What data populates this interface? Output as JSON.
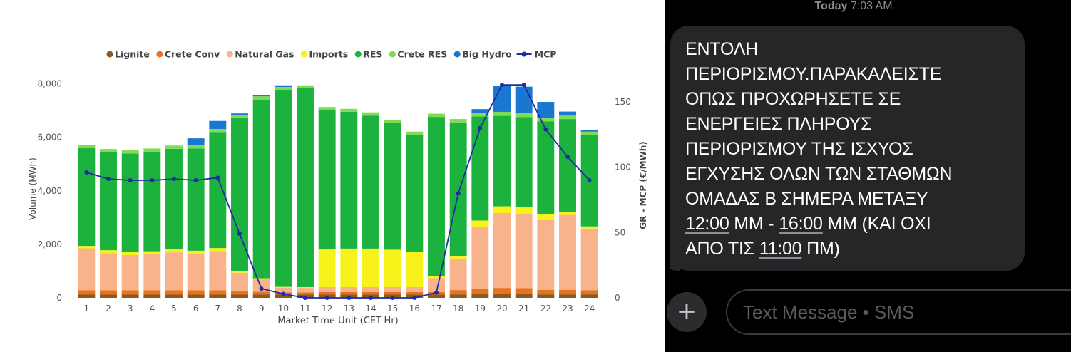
{
  "chart_data": {
    "type": "bar",
    "stacked": true,
    "xlabel": "Market Time Unit (CET-Hr)",
    "ylabel": "Volume (MWh)",
    "y2label": "GR - MCP (€/MWh)",
    "ylim": [
      0,
      8200
    ],
    "y2lim": [
      0,
      168
    ],
    "yticks": [
      "0",
      "2,000",
      "4,000",
      "6,000",
      "8,000"
    ],
    "yticks_values": [
      0,
      2000,
      4000,
      6000,
      8000
    ],
    "y2ticks": [
      "0",
      "50",
      "100",
      "150"
    ],
    "y2ticks_values": [
      0,
      50,
      100,
      150
    ],
    "legend_position": "top",
    "categories": [
      "1",
      "2",
      "3",
      "4",
      "5",
      "6",
      "7",
      "8",
      "9",
      "10",
      "11",
      "12",
      "13",
      "14",
      "15",
      "16",
      "17",
      "18",
      "19",
      "20",
      "21",
      "22",
      "23",
      "24"
    ],
    "series": [
      {
        "name": "Lignite",
        "color": "#8b5a1e",
        "values": [
          120,
          120,
          120,
          120,
          120,
          120,
          120,
          120,
          120,
          120,
          120,
          120,
          120,
          120,
          120,
          120,
          120,
          130,
          140,
          150,
          150,
          130,
          130,
          130
        ]
      },
      {
        "name": "Crete Conv",
        "color": "#e8731e",
        "values": [
          160,
          160,
          160,
          160,
          160,
          160,
          160,
          150,
          110,
          80,
          80,
          100,
          100,
          100,
          100,
          100,
          100,
          160,
          190,
          220,
          210,
          170,
          170,
          150
        ]
      },
      {
        "name": "Natural Gas",
        "color": "#f8b38a",
        "values": [
          1570,
          1390,
          1320,
          1350,
          1420,
          1370,
          1470,
          670,
          460,
          180,
          170,
          180,
          180,
          180,
          180,
          180,
          520,
          1180,
          2330,
          2800,
          2790,
          2610,
          2800,
          2310
        ]
      },
      {
        "name": "Imports",
        "color": "#f7f21a",
        "values": [
          90,
          110,
          110,
          110,
          110,
          110,
          110,
          60,
          40,
          30,
          30,
          1410,
          1440,
          1440,
          1400,
          1320,
          80,
          100,
          230,
          250,
          250,
          230,
          100,
          80
        ]
      },
      {
        "name": "RES",
        "color": "#1bb23d",
        "values": [
          3650,
          3660,
          3680,
          3720,
          3760,
          3820,
          4330,
          5710,
          6680,
          7360,
          7430,
          5210,
          5110,
          4970,
          4730,
          4370,
          5940,
          4980,
          3890,
          3380,
          3350,
          3450,
          3480,
          3420
        ]
      },
      {
        "name": "Crete RES",
        "color": "#7fdb52",
        "values": [
          120,
          120,
          120,
          120,
          120,
          120,
          120,
          120,
          120,
          110,
          110,
          110,
          110,
          120,
          120,
          120,
          120,
          130,
          140,
          150,
          150,
          140,
          130,
          120
        ]
      },
      {
        "name": "Big Hydro",
        "color": "#1877d0",
        "values": [
          0,
          0,
          0,
          0,
          0,
          260,
          300,
          60,
          50,
          60,
          0,
          0,
          0,
          0,
          0,
          0,
          0,
          0,
          130,
          980,
          990,
          590,
          150,
          50
        ]
      }
    ],
    "line_series": {
      "name": "MCP",
      "color": "#1f2aa5",
      "axis": "y2",
      "values": [
        96,
        91,
        90,
        90,
        91,
        90,
        92,
        49,
        7,
        3,
        0,
        0,
        0,
        0,
        0,
        0,
        4,
        80,
        130,
        163,
        163,
        129,
        108,
        90
      ]
    }
  },
  "sms": {
    "timestamp_day": "Today",
    "timestamp_time": "7:03 AM",
    "lines": [
      [
        "ΕΝΤΟΛΗ"
      ],
      [
        "ΠΕΡΙΟΡΙΣΜΟΥ.ΠΑΡΑΚΑΛΕΙΣΤΕ"
      ],
      [
        "ΟΠΩΣ ΠΡΟΧΩΡΗΣΕΤΕ ΣΕ"
      ],
      [
        "ΕΝΕΡΓΕΙΕΣ ΠΛΗΡΟΥΣ"
      ],
      [
        "ΠΕΡΙΟΡΙΣΜΟΥ ΤΗΣ ΙΣΧΥΟΣ"
      ],
      [
        "ΕΓΧΥΣΗΣ ΟΛΩΝ ΤΩΝ ΣΤΑΘΜΩΝ"
      ],
      [
        "ΟΜΑΔΑΣ Β ΣΗΜΕΡΑ ΜΕΤΑΞΥ"
      ],
      [
        "",
        "12:00",
        " ΜΜ - ",
        "16:00",
        " ΜΜ (ΚΑΙ ΟΧΙ"
      ],
      [
        "ΑΠΟ ΤΙΣ ",
        "11:00",
        " ΠΜ)"
      ]
    ],
    "input_placeholder": "Text Message • SMS",
    "plus_label": "+"
  }
}
